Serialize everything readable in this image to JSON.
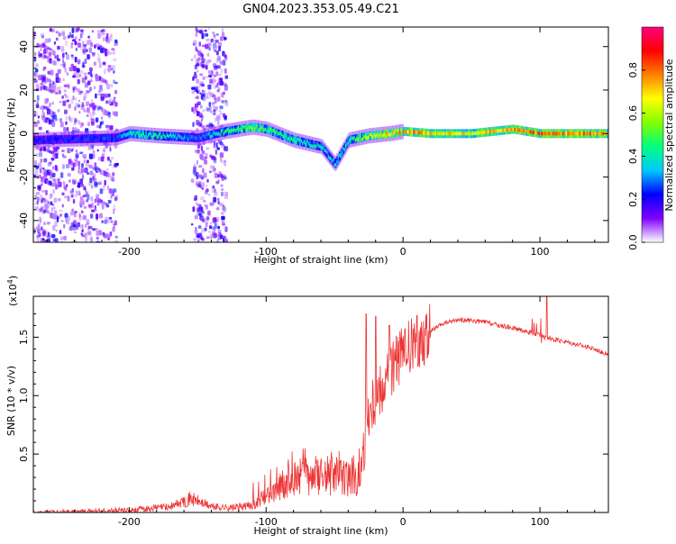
{
  "title": "GN04.2023.353.05.49.C21",
  "chart_data": [
    {
      "type": "heatmap",
      "xlabel": "Height of straight line (km)",
      "ylabel": "Frequency (Hz)",
      "xlim": [
        -270,
        150
      ],
      "ylim": [
        -50,
        49
      ],
      "x_ticks": [
        -200,
        -100,
        0,
        100
      ],
      "y_ticks": [
        -40,
        -20,
        0,
        20,
        40
      ],
      "colorbar": {
        "label": "Normalized spectral amplitude",
        "range": [
          0,
          1
        ],
        "ticks": [
          "0.0",
          "0.2",
          "0.4",
          "0.6",
          "0.8"
        ],
        "colormap": [
          "#ffffff",
          "#8000ff",
          "#0000ff",
          "#00c8ff",
          "#00ff80",
          "#80ff00",
          "#ffff00",
          "#ff8000",
          "#ff0000",
          "#ff0080"
        ]
      },
      "band": [
        {
          "x": -270,
          "freq": -3,
          "amp": 0.25
        },
        {
          "x": -210,
          "freq": -2,
          "amp": 0.3
        },
        {
          "x": -200,
          "freq": 0,
          "amp": 0.45
        },
        {
          "x": -180,
          "freq": -1,
          "amp": 0.5
        },
        {
          "x": -150,
          "freq": -2,
          "amp": 0.3
        },
        {
          "x": -130,
          "freq": 1,
          "amp": 0.5
        },
        {
          "x": -110,
          "freq": 3,
          "amp": 0.6
        },
        {
          "x": -100,
          "freq": 2,
          "amp": 0.55
        },
        {
          "x": -80,
          "freq": -3,
          "amp": 0.5
        },
        {
          "x": -60,
          "freq": -6,
          "amp": 0.45
        },
        {
          "x": -50,
          "freq": -14,
          "amp": 0.4
        },
        {
          "x": -40,
          "freq": -3,
          "amp": 0.5
        },
        {
          "x": -25,
          "freq": -1,
          "amp": 0.7
        },
        {
          "x": -10,
          "freq": 0,
          "amp": 0.8
        },
        {
          "x": 0,
          "freq": 1,
          "amp": 0.85
        },
        {
          "x": 20,
          "freq": 0,
          "amp": 0.8
        },
        {
          "x": 50,
          "freq": 0,
          "amp": 0.75
        },
        {
          "x": 80,
          "freq": 2,
          "amp": 0.85
        },
        {
          "x": 100,
          "freq": 0,
          "amp": 0.9
        },
        {
          "x": 150,
          "freq": 0,
          "amp": 0.85
        }
      ],
      "noise_regions": [
        {
          "x_range": [
            -270,
            -210
          ],
          "freq_range": [
            -50,
            49
          ],
          "density": "high"
        },
        {
          "x_range": [
            -155,
            -130
          ],
          "freq_range": [
            -50,
            49
          ],
          "density": "medium"
        }
      ]
    },
    {
      "type": "line",
      "xlabel": "Height of straight line (km)",
      "ylabel": "SNR (10 * v/v)",
      "scale_label": "(x10",
      "scale_exponent": "4",
      "scale_suffix": ")",
      "xlim": [
        -270,
        150
      ],
      "ylim": [
        0,
        1.85
      ],
      "x_ticks": [
        -200,
        -100,
        0,
        100
      ],
      "y_ticks": [
        0.5,
        1.0,
        1.5
      ],
      "y_tick_labels": [
        "0.5",
        "1.0",
        "1.5"
      ],
      "color": "#ee3333",
      "series": [
        {
          "x": [
            -270,
            -200,
            -170,
            -155,
            -140,
            -125,
            -110,
            -100,
            -90,
            -80,
            -70,
            -60,
            -50,
            -40,
            -35,
            -30,
            -25,
            -20,
            -15,
            -10,
            -5,
            0,
            10,
            20,
            30,
            40,
            50,
            60,
            70,
            80,
            90,
            100,
            105,
            110,
            120,
            130,
            140,
            150
          ],
          "y": [
            0.0,
            0.02,
            0.05,
            0.12,
            0.05,
            0.04,
            0.06,
            0.15,
            0.22,
            0.3,
            0.32,
            0.3,
            0.32,
            0.3,
            0.25,
            0.45,
            0.9,
            1.0,
            1.1,
            1.2,
            1.3,
            1.35,
            1.45,
            1.55,
            1.62,
            1.65,
            1.64,
            1.63,
            1.6,
            1.58,
            1.55,
            1.52,
            1.5,
            1.48,
            1.46,
            1.43,
            1.4,
            1.35
          ]
        }
      ],
      "spikes": [
        {
          "x": -27,
          "y": 1.7
        },
        {
          "x": -20,
          "y": 1.68
        },
        {
          "x": -10,
          "y": 1.6
        },
        {
          "x": 105,
          "y": 1.85
        }
      ]
    }
  ]
}
